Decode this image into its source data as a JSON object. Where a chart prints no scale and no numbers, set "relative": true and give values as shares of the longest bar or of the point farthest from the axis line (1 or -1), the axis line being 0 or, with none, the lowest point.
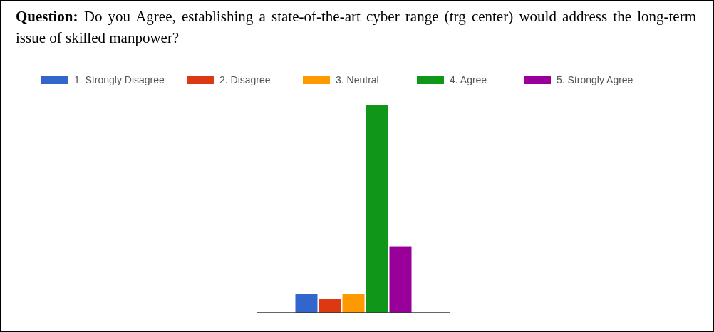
{
  "chart_data": {
    "type": "bar",
    "title": "Question: Do you Agree, establishing a state-of-the-art cyber range (trg center) would address the long-term issue of skilled manpower?",
    "categories": [
      null
    ],
    "relative": true,
    "legend": "top",
    "series": [
      {
        "name": "1. Strongly Disagree",
        "color": "#3366cc",
        "values": [
          0.089
        ]
      },
      {
        "name": "2. Disagree",
        "color": "#dc3912",
        "values": [
          0.065
        ]
      },
      {
        "name": "3. Neutral",
        "color": "#ff9900",
        "values": [
          0.092
        ]
      },
      {
        "name": "4. Agree",
        "color": "#109618",
        "values": [
          1
        ]
      },
      {
        "name": "5. Strongly Agree",
        "color": "#990099",
        "values": [
          0.32
        ]
      }
    ]
  }
}
